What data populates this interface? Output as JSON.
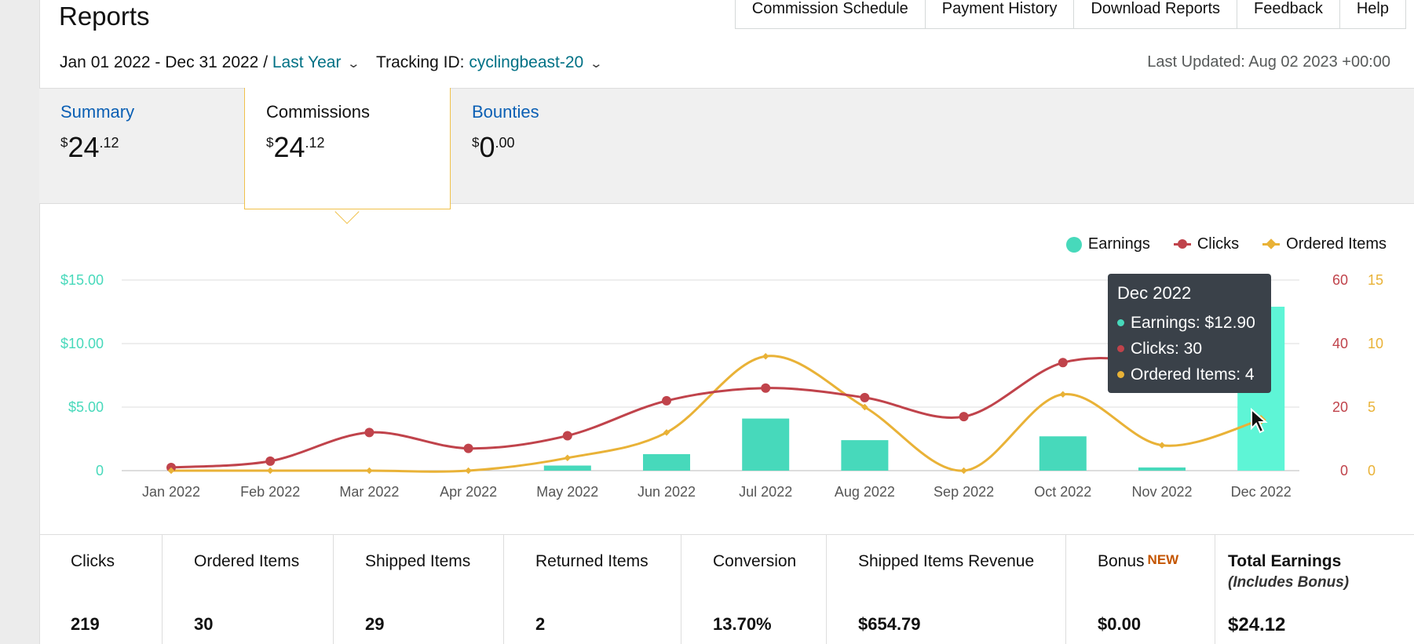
{
  "page": {
    "title": "Reports",
    "nav": [
      "Commission Schedule",
      "Payment History",
      "Download Reports",
      "Feedback",
      "Help"
    ]
  },
  "filters": {
    "date_range": "Jan 01 2022 - Dec 31 2022 /",
    "period": "Last Year",
    "tracking_label": "Tracking ID:",
    "tracking_id": "cyclingbeast-20",
    "last_updated": "Last Updated: Aug 02 2023 +00:00"
  },
  "tabs": [
    {
      "label": "Summary",
      "currency": "$",
      "whole": "24",
      "cents": ".12"
    },
    {
      "label": "Commissions",
      "currency": "$",
      "whole": "24",
      "cents": ".12"
    },
    {
      "label": "Bounties",
      "currency": "$",
      "whole": "0",
      "cents": ".00"
    }
  ],
  "legend": [
    "Earnings",
    "Clicks",
    "Ordered Items"
  ],
  "colors": {
    "earnings": "#47d9bb",
    "earnings_highlight": "#5ef5d6",
    "clicks": "#c0434b",
    "ordered": "#e9b237",
    "link": "#007185"
  },
  "chart_data": {
    "type": "bar",
    "categories": [
      "Jan 2022",
      "Feb 2022",
      "Mar 2022",
      "Apr 2022",
      "May 2022",
      "Jun 2022",
      "Jul 2022",
      "Aug 2022",
      "Sep 2022",
      "Oct 2022",
      "Nov 2022",
      "Dec 2022"
    ],
    "series": [
      {
        "name": "Earnings",
        "type": "bar",
        "axis": "left",
        "values": [
          0,
          0,
          0,
          0,
          0.4,
          1.3,
          4.1,
          2.4,
          0,
          2.7,
          0.25,
          12.9
        ]
      },
      {
        "name": "Clicks",
        "type": "line",
        "axis": "right1",
        "values": [
          1,
          3,
          12,
          7,
          11,
          22,
          26,
          23,
          17,
          34,
          34,
          30
        ]
      },
      {
        "name": "Ordered Items",
        "type": "line",
        "axis": "right2",
        "values": [
          0,
          0,
          0,
          0,
          1,
          3,
          9,
          5,
          0,
          6,
          2,
          4
        ]
      }
    ],
    "left_axis": {
      "ticks": [
        "0",
        "$5.00",
        "$10.00",
        "$15.00"
      ],
      "range": [
        0,
        15
      ]
    },
    "right_axis_1": {
      "ticks": [
        "0",
        "20",
        "40",
        "60"
      ],
      "range": [
        0,
        60
      ]
    },
    "right_axis_2": {
      "ticks": [
        "0",
        "5",
        "10",
        "15"
      ],
      "range": [
        0,
        15
      ]
    },
    "grid": true,
    "legend_position": "top-right"
  },
  "tooltip": {
    "title": "Dec 2022",
    "rows": [
      "Earnings: $12.90",
      "Clicks: 30",
      "Ordered Items: 4"
    ]
  },
  "stats": [
    {
      "label": "Clicks",
      "value": "219"
    },
    {
      "label": "Ordered Items",
      "value": "30"
    },
    {
      "label": "Shipped Items",
      "value": "29"
    },
    {
      "label": "Returned Items",
      "value": "2"
    },
    {
      "label": "Conversion",
      "value": "13.70%"
    },
    {
      "label": "Shipped Items Revenue",
      "value": "$654.79"
    },
    {
      "label": "Bonus",
      "badge": "NEW",
      "value": "$0.00"
    },
    {
      "label": "Total Earnings",
      "sub": "(Includes Bonus)",
      "value": "$24.12"
    }
  ]
}
